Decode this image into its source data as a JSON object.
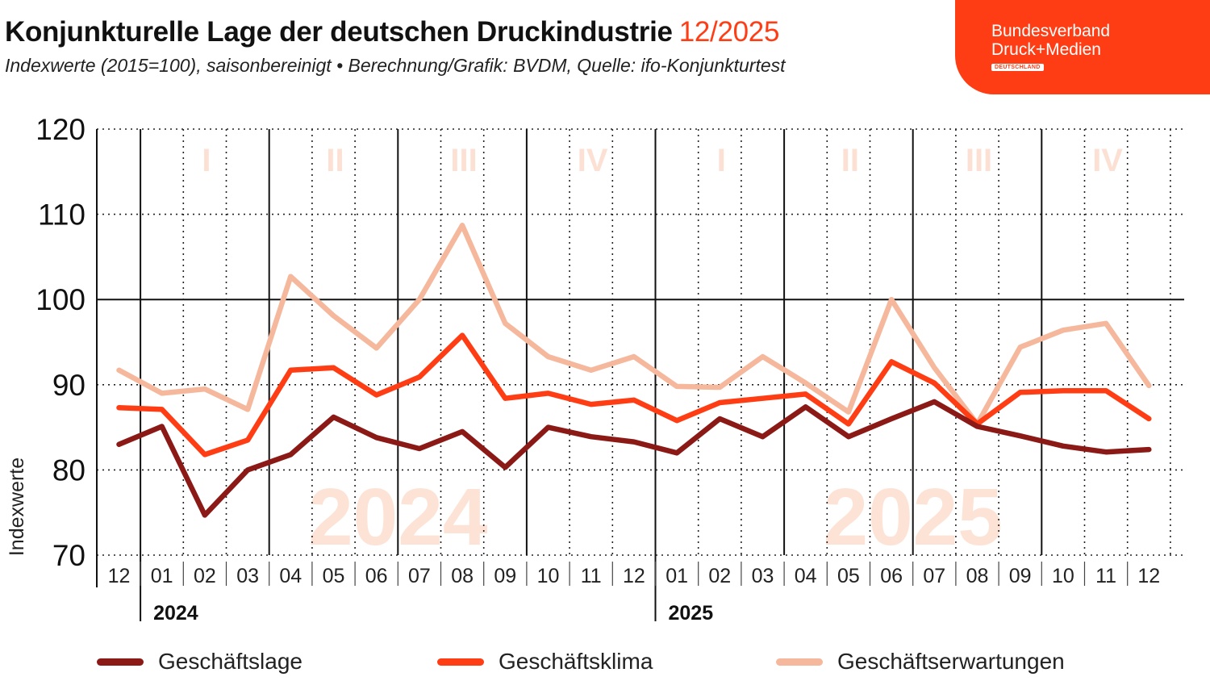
{
  "header": {
    "title": "Konjunkturelle Lage der deutschen Druckindustrie",
    "date": "12/2025",
    "subtitle": "Indexwerte (2015=100), saisonbereinigt • Berechnung/Grafik: BVDM, Quelle: ifo-Konjunkturtest"
  },
  "logo": {
    "line1": "Bundesverband",
    "line2": "Druck+Medien",
    "badge": "DEUTSCHLAND"
  },
  "colors": {
    "accent": "#ff3d14",
    "watermark": "#fde3d6",
    "quarter_label": "#fbe0d3"
  },
  "chart_data": {
    "type": "line",
    "ylabel": "Indexwerte",
    "ylim": [
      70,
      120
    ],
    "yticks": [
      70,
      80,
      90,
      100,
      110,
      120
    ],
    "grid": true,
    "reference_line": 100,
    "legend_position": "bottom",
    "categories": [
      "12",
      "01",
      "02",
      "03",
      "04",
      "05",
      "06",
      "07",
      "08",
      "09",
      "10",
      "11",
      "12",
      "01",
      "02",
      "03",
      "04",
      "05",
      "06",
      "07",
      "08",
      "09",
      "10",
      "11",
      "12"
    ],
    "years": [
      {
        "label": "2024",
        "start_index": 1,
        "watermark": "2024"
      },
      {
        "label": "2025",
        "start_index": 13,
        "watermark": "2025"
      }
    ],
    "quarters": [
      "I",
      "II",
      "III",
      "IV",
      "I",
      "II",
      "III",
      "IV"
    ],
    "series": [
      {
        "name": "Geschäftslage",
        "color": "#8b1a17",
        "values": [
          83.0,
          85.1,
          74.7,
          80.0,
          81.8,
          86.2,
          83.8,
          82.5,
          84.5,
          80.3,
          85.0,
          83.9,
          83.3,
          82.0,
          86.0,
          83.9,
          87.4,
          83.9,
          86.0,
          88.0,
          85.1,
          84.0,
          82.8,
          82.1,
          82.4
        ]
      },
      {
        "name": "Geschäftsklima",
        "color": "#ff3d14",
        "values": [
          87.3,
          87.1,
          81.8,
          83.5,
          91.7,
          92.0,
          88.8,
          90.9,
          95.8,
          88.4,
          89.0,
          87.7,
          88.2,
          85.8,
          87.9,
          88.4,
          88.9,
          85.4,
          92.7,
          90.2,
          85.4,
          89.1,
          89.3,
          89.3,
          86.0
        ]
      },
      {
        "name": "Geschäftserwartungen",
        "color": "#f5b89c",
        "values": [
          91.7,
          89.0,
          89.5,
          87.1,
          102.7,
          98.1,
          94.3,
          100.0,
          108.7,
          97.2,
          93.3,
          91.7,
          93.3,
          89.8,
          89.7,
          93.3,
          90.2,
          86.8,
          100.0,
          92.0,
          85.4,
          94.4,
          96.4,
          97.2,
          89.9
        ]
      }
    ]
  }
}
